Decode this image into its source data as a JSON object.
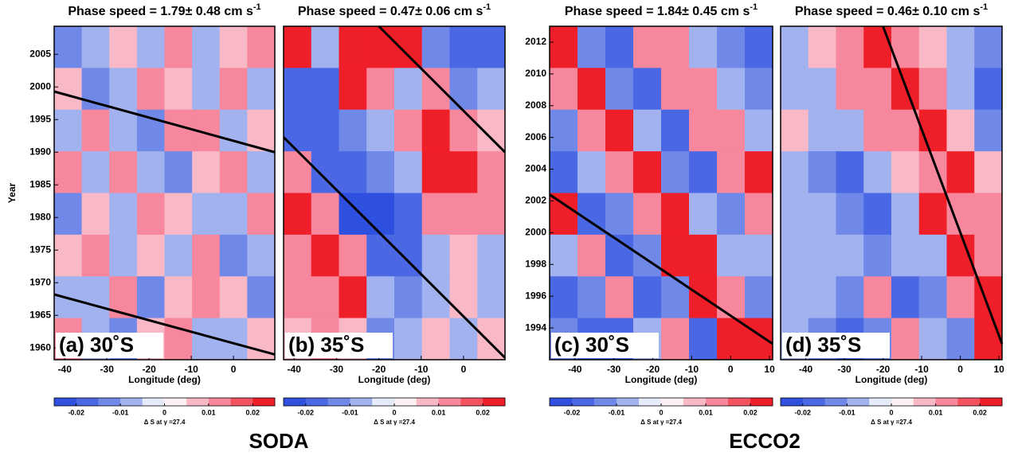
{
  "groups": [
    {
      "label": "SODA"
    },
    {
      "label": "ECCO2"
    }
  ],
  "chart_data": [
    {
      "type": "heatmap",
      "title": "Phase speed =  1.79± 0.48 cm s",
      "title_superscript": "-1",
      "panel_label": "(a) 30˚S",
      "xlabel": "Longitude (deg)",
      "ylabel": "Year",
      "xlim": [
        -42.5,
        9.8
      ],
      "ylim": [
        1958.2,
        2009.3
      ],
      "xticks": [
        -40,
        -30,
        -20,
        -10,
        0
      ],
      "yticks": [
        1960,
        1965,
        1970,
        1975,
        1980,
        1985,
        1990,
        1995,
        2000,
        2005
      ],
      "field": [
        [
          -0.015,
          -0.01,
          0.005,
          -0.005,
          0.01,
          -0.01,
          0.005,
          0.01
        ],
        [
          0.005,
          -0.015,
          -0.01,
          0.01,
          0.005,
          -0.005,
          0.015,
          -0.01
        ],
        [
          -0.01,
          0.01,
          -0.005,
          -0.015,
          0.01,
          0.015,
          -0.01,
          0.005
        ],
        [
          0.01,
          -0.005,
          0.015,
          -0.01,
          -0.015,
          0.005,
          0.01,
          -0.005
        ],
        [
          -0.015,
          0.005,
          -0.01,
          0.01,
          0.005,
          -0.01,
          -0.005,
          0.015
        ],
        [
          0.005,
          0.015,
          -0.005,
          0.005,
          -0.01,
          0.01,
          -0.015,
          -0.01
        ],
        [
          -0.005,
          -0.01,
          0.01,
          -0.015,
          0.005,
          0.015,
          0.005,
          -0.015
        ],
        [
          0.01,
          -0.005,
          -0.015,
          0.005,
          0.01,
          -0.005,
          -0.01,
          0.005
        ]
      ],
      "lines": [
        {
          "x": [
            -42.5,
            9.8
          ],
          "y": [
            1999.3,
            1990
          ]
        },
        {
          "x": [
            -42.5,
            9.8
          ],
          "y": [
            1968.2,
            1959
          ]
        }
      ],
      "colorbar": {
        "label": "Δ S at γ =27.4",
        "clim": [
          -0.025,
          0.025
        ],
        "ticks": [
          -0.02,
          -0.01,
          0,
          0.01,
          0.02
        ],
        "colors": [
          "#2f50de",
          "#4a68e4",
          "#7088e8",
          "#a2b2ef",
          "#e6ebfa",
          "#fdeef2",
          "#f9b8c6",
          "#f6879c",
          "#f3525f",
          "#ef1f2a"
        ]
      }
    },
    {
      "type": "heatmap",
      "title": "Phase speed =  0.47± 0.06 cm s",
      "title_superscript": "-1",
      "panel_label": "(b) 35˚S",
      "xlabel": "Longitude (deg)",
      "xlim": [
        -42.5,
        9.8
      ],
      "ylim": [
        1958.2,
        2009.3
      ],
      "xticks": [
        -40,
        -30,
        -20,
        -10,
        0
      ],
      "field": [
        [
          0.02,
          -0.01,
          0.025,
          0.025,
          0.02,
          -0.015,
          -0.02,
          -0.02
        ],
        [
          -0.02,
          -0.02,
          0.02,
          0.015,
          -0.005,
          0.01,
          -0.015,
          -0.01
        ],
        [
          -0.02,
          -0.02,
          -0.015,
          -0.01,
          0.015,
          0.02,
          0.01,
          0.005
        ],
        [
          0.015,
          -0.02,
          -0.02,
          -0.015,
          -0.005,
          0.02,
          0.02,
          0.015
        ],
        [
          0.02,
          0.015,
          -0.025,
          -0.025,
          -0.02,
          0.01,
          0.015,
          0.01
        ],
        [
          0.015,
          0.02,
          0.015,
          -0.02,
          -0.02,
          -0.005,
          0.005,
          -0.005
        ],
        [
          0.01,
          0.015,
          0.02,
          -0.01,
          -0.015,
          -0.01,
          0.005,
          -0.01
        ],
        [
          0.005,
          0.01,
          0.005,
          -0.015,
          -0.005,
          0.005,
          -0.01,
          0.005
        ]
      ],
      "lines": [
        {
          "x": [
            -20,
            9.8
          ],
          "y": [
            2009.3,
            1990
          ]
        },
        {
          "x": [
            -42.5,
            9.8
          ],
          "y": [
            1992.3,
            1958.5
          ]
        }
      ],
      "colorbar": {
        "label": "Δ S at γ =27.4",
        "clim": [
          -0.025,
          0.025
        ],
        "ticks": [
          -0.02,
          -0.01,
          0,
          0.01,
          0.02
        ],
        "colors": [
          "#2f50de",
          "#4a68e4",
          "#7088e8",
          "#a2b2ef",
          "#e6ebfa",
          "#fdeef2",
          "#f9b8c6",
          "#f6879c",
          "#f3525f",
          "#ef1f2a"
        ]
      }
    },
    {
      "type": "heatmap",
      "title": "Phase speed =  1.84± 0.45 cm s",
      "title_superscript": "-1",
      "panel_label": "(c) 30˚S",
      "xlabel": "Longitude (deg)",
      "xlim": [
        -46.5,
        10.8
      ],
      "ylim": [
        1992,
        2013
      ],
      "xticks": [
        -40,
        -30,
        -20,
        -10,
        0,
        10
      ],
      "yticks": [
        1994,
        1996,
        1998,
        2000,
        2002,
        2004,
        2006,
        2008,
        2010,
        2012
      ],
      "field": [
        [
          0.02,
          -0.015,
          -0.02,
          0.01,
          0.015,
          -0.01,
          -0.015,
          -0.02
        ],
        [
          0.015,
          0.02,
          -0.015,
          -0.02,
          0.01,
          0.015,
          -0.01,
          -0.015
        ],
        [
          -0.015,
          0.015,
          0.02,
          -0.01,
          -0.02,
          0.01,
          0.015,
          -0.01
        ],
        [
          -0.02,
          -0.01,
          0.015,
          0.02,
          -0.015,
          -0.02,
          0.01,
          0.02
        ],
        [
          0.02,
          -0.02,
          -0.015,
          0.015,
          0.02,
          -0.01,
          -0.015,
          0.015
        ],
        [
          -0.01,
          0.015,
          -0.02,
          -0.015,
          0.02,
          0.02,
          -0.01,
          -0.005
        ],
        [
          -0.02,
          -0.015,
          0.01,
          -0.02,
          -0.015,
          0.02,
          0.015,
          -0.015
        ],
        [
          -0.015,
          -0.02,
          -0.02,
          -0.01,
          0.015,
          -0.02,
          0.02,
          0.02
        ]
      ],
      "lines": [
        {
          "x": [
            -46.5,
            10.8
          ],
          "y": [
            2002.4,
            1993
          ]
        }
      ],
      "colorbar": {
        "label": "Δ S at γ =27.4",
        "clim": [
          -0.025,
          0.025
        ],
        "ticks": [
          -0.02,
          -0.01,
          0,
          0.01,
          0.02
        ],
        "colors": [
          "#2f50de",
          "#4a68e4",
          "#7088e8",
          "#a2b2ef",
          "#e6ebfa",
          "#fdeef2",
          "#f9b8c6",
          "#f6879c",
          "#f3525f",
          "#ef1f2a"
        ]
      }
    },
    {
      "type": "heatmap",
      "title": "Phase speed =  0.46± 0.10 cm s",
      "title_superscript": "-1",
      "panel_label": "(d) 35˚S",
      "xlabel": "Longitude (deg)",
      "xlim": [
        -46.5,
        10.8
      ],
      "ylim": [
        1992,
        2013
      ],
      "xticks": [
        -40,
        -30,
        -20,
        -10,
        0,
        10
      ],
      "field": [
        [
          -0.005,
          0.005,
          0.01,
          0.02,
          0.015,
          0.005,
          -0.01,
          -0.015
        ],
        [
          -0.005,
          -0.005,
          0.015,
          0.01,
          0.02,
          0.01,
          -0.005,
          -0.02
        ],
        [
          0.005,
          -0.005,
          -0.01,
          0.015,
          0.01,
          0.02,
          0.005,
          -0.015
        ],
        [
          -0.01,
          -0.015,
          -0.02,
          -0.01,
          0.005,
          0.015,
          0.02,
          0.005
        ],
        [
          -0.005,
          -0.01,
          -0.015,
          -0.02,
          -0.01,
          0.02,
          0.015,
          0.01
        ],
        [
          -0.005,
          -0.005,
          -0.01,
          -0.015,
          -0.005,
          -0.01,
          0.02,
          0.015
        ],
        [
          -0.005,
          -0.01,
          -0.015,
          0.01,
          -0.02,
          -0.015,
          0.015,
          0.02
        ],
        [
          -0.01,
          -0.015,
          -0.02,
          -0.015,
          0.015,
          -0.01,
          -0.015,
          0.02
        ]
      ],
      "lines": [
        {
          "x": [
            -20,
            10.8
          ],
          "y": [
            2013,
            1993
          ]
        }
      ],
      "colorbar": {
        "label": "Δ S at γ =27.4",
        "clim": [
          -0.025,
          0.025
        ],
        "ticks": [
          -0.02,
          -0.01,
          0,
          0.01,
          0.02
        ],
        "colors": [
          "#2f50de",
          "#4a68e4",
          "#7088e8",
          "#a2b2ef",
          "#e6ebfa",
          "#fdeef2",
          "#f9b8c6",
          "#f6879c",
          "#f3525f",
          "#ef1f2a"
        ]
      }
    }
  ]
}
